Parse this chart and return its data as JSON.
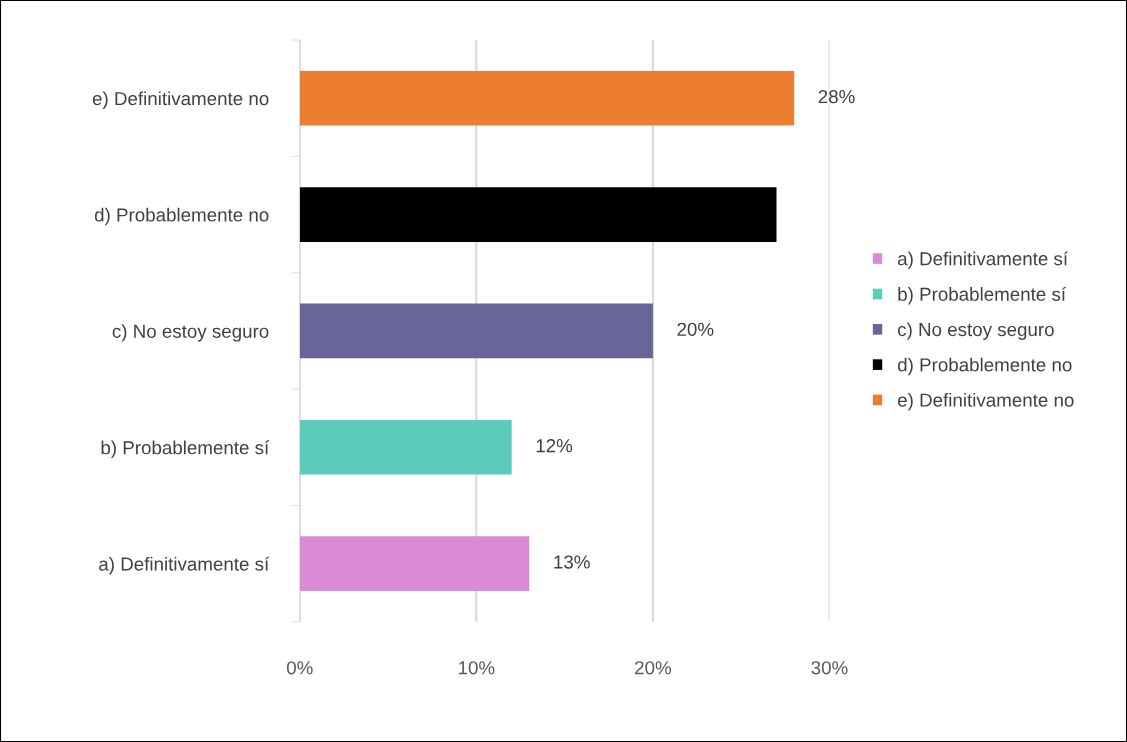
{
  "chart_data": {
    "type": "bar",
    "orientation": "horizontal",
    "categories": [
      "e) Definitivamente no",
      "d) Probablemente no",
      "c) No estoy seguro",
      "b) Probablemente sí",
      "a) Definitivamente sí"
    ],
    "series": [
      {
        "name": "a) Definitivamente sí",
        "color": "#da8bd6",
        "values": [
          null,
          null,
          null,
          null,
          13
        ],
        "value_labels": [
          null,
          null,
          null,
          null,
          "13%"
        ]
      },
      {
        "name": "b) Probablemente sí",
        "color": "#5bcbbb",
        "values": [
          null,
          null,
          null,
          12,
          null
        ],
        "value_labels": [
          null,
          null,
          null,
          "12%",
          null
        ]
      },
      {
        "name": "c) No estoy seguro",
        "color": "#686699",
        "values": [
          null,
          null,
          20,
          null,
          null
        ],
        "value_labels": [
          null,
          null,
          "20%",
          null,
          null
        ]
      },
      {
        "name": "d) Probablemente no",
        "color": "#000000",
        "values": [
          null,
          27,
          null,
          null,
          null
        ]
      },
      {
        "name": "e) Definitivamente no",
        "color": "#ed7d31",
        "values": [
          28,
          null,
          null,
          null,
          null
        ],
        "value_labels": [
          "28%",
          null,
          null,
          null,
          null
        ]
      }
    ],
    "xlim": [
      0,
      30
    ],
    "xticks": [
      {
        "value": 0,
        "label": "0%"
      },
      {
        "value": 10,
        "label": "10%"
      },
      {
        "value": 20,
        "label": "20%"
      },
      {
        "value": 30,
        "label": "30%"
      }
    ],
    "grid": "x",
    "legend": "right"
  }
}
